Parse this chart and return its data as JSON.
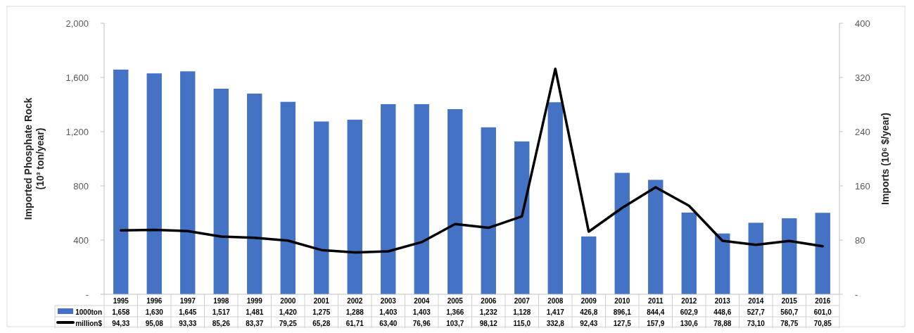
{
  "chart_data": {
    "type": "bar",
    "ylabel": "Imported Phosphate Rock (10³ ton/year)",
    "y2label": "Imports (10⁶ $/year)",
    "categories": [
      "1995",
      "1996",
      "1997",
      "1998",
      "1999",
      "2000",
      "2001",
      "2002",
      "2003",
      "2004",
      "2005",
      "2006",
      "2007",
      "2008",
      "2009",
      "2010",
      "2011",
      "2012",
      "2013",
      "2014",
      "2015",
      "2016"
    ],
    "series": [
      {
        "name": "1000ton",
        "color": "#4472c4",
        "values": [
          1658,
          1630,
          1645,
          1517,
          1481,
          1420,
          1275,
          1288,
          1403,
          1403,
          1366,
          1232,
          1128,
          1417,
          426.8,
          896.1,
          844.4,
          602.9,
          448.6,
          527.7,
          560.7,
          601.0
        ],
        "value_labels": [
          "1,658",
          "1,630",
          "1,645",
          "1,517",
          "1,481",
          "1,420",
          "1,275",
          "1,288",
          "1,403",
          "1,403",
          "1,366",
          "1,232",
          "1,128",
          "1,417",
          "426,8",
          "896,1",
          "844,4",
          "602,9",
          "448,6",
          "527,7",
          "560,7",
          "601,0"
        ]
      },
      {
        "name": "million$",
        "type": "line",
        "axis": "y2",
        "color": "#000000",
        "values": [
          94.33,
          95.08,
          93.33,
          85.26,
          83.37,
          79.25,
          65.28,
          61.71,
          63.4,
          76.96,
          103.7,
          98.12,
          115.0,
          332.8,
          92.43,
          127.5,
          157.9,
          130.6,
          78.88,
          73.1,
          78.75,
          70.85
        ],
        "value_labels": [
          "94,33",
          "95,08",
          "93,33",
          "85,26",
          "83,37",
          "79,25",
          "65,28",
          "61,71",
          "63,40",
          "76,96",
          "103,7",
          "98,12",
          "115,0",
          "332,8",
          "92,43",
          "127,5",
          "157,9",
          "130,6",
          "78,88",
          "73,10",
          "78,75",
          "70,85"
        ]
      }
    ],
    "ylim": [
      0,
      2000
    ],
    "yticks": [
      {
        "value": 0,
        "label": "-"
      },
      400,
      800,
      {
        "value": 1200,
        "label": "1,200"
      },
      {
        "value": 1600,
        "label": "1,600"
      },
      {
        "value": 2000,
        "label": "2,000"
      }
    ],
    "y2lim": [
      0,
      400
    ],
    "y2ticks": [
      {
        "value": 0,
        "label": "-"
      },
      80,
      160,
      240,
      320,
      400
    ],
    "legend": "bottom",
    "line_style": "solid"
  }
}
